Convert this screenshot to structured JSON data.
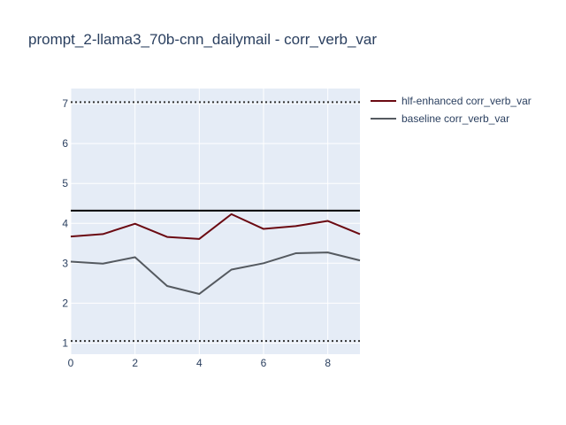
{
  "chart_data": {
    "type": "line",
    "title": "prompt_2-llama3_70b-cnn_dailymail - corr_verb_var",
    "xlabel": "",
    "ylabel": "",
    "xlim": [
      0,
      9
    ],
    "ylim": [
      0.72,
      7.38
    ],
    "x": [
      0,
      1,
      2,
      3,
      4,
      5,
      6,
      7,
      8,
      9
    ],
    "x_ticks": [
      0,
      2,
      4,
      6,
      8
    ],
    "y_ticks": [
      1,
      2,
      3,
      4,
      5,
      6,
      7
    ],
    "grid": true,
    "legend_position": "top-right",
    "series": [
      {
        "name": "hlf-enhanced corr_verb_var",
        "color": "#6b0a12",
        "values": [
          3.67,
          3.73,
          3.99,
          3.66,
          3.61,
          4.23,
          3.86,
          3.93,
          4.06,
          3.73
        ]
      },
      {
        "name": "baseline corr_verb_var",
        "color": "#555a60",
        "values": [
          3.04,
          2.99,
          3.15,
          2.43,
          2.23,
          2.84,
          3.0,
          3.25,
          3.27,
          3.07
        ]
      }
    ],
    "reference_lines": [
      {
        "y": 4.32,
        "style": "solid",
        "color": "#000000"
      },
      {
        "y": 7.04,
        "style": "dotted",
        "color": "#333333"
      },
      {
        "y": 1.05,
        "style": "dotted",
        "color": "#333333"
      }
    ],
    "colors": {
      "plot_bg": "#e5ecf6",
      "grid": "#ffffff",
      "text": "#2a3f5f"
    }
  }
}
